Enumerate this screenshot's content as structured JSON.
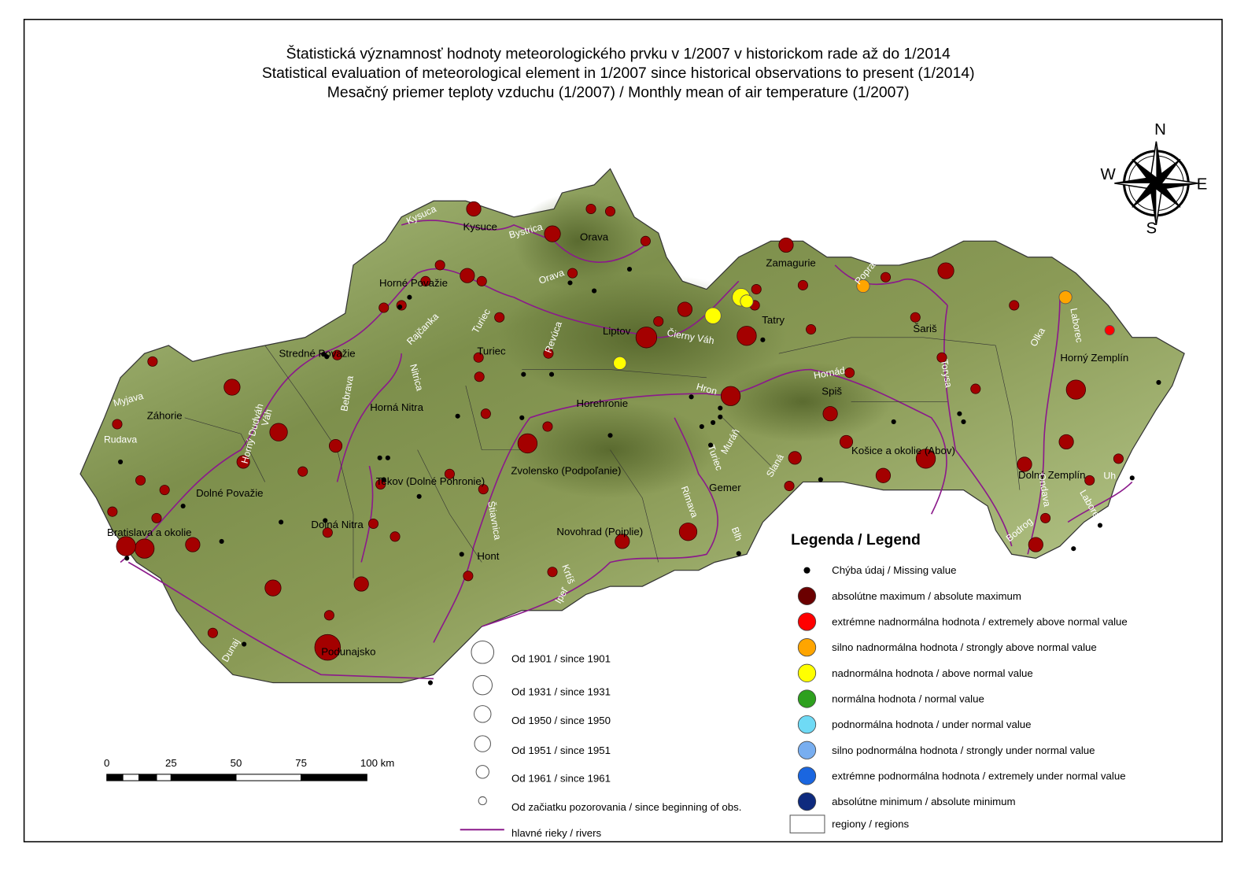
{
  "title": [
    "Štatistická významnosť hodnoty meteorologického prvku v 1/2007 v historickom rade až do 1/2014",
    "Statistical evaluation of meteorological element in 1/2007 since historical observations to present (1/2014)",
    "Mesačný priemer teploty vzduchu (1/2007) / Monthly mean of air temperature (1/2007)"
  ],
  "compass": {
    "north": "N",
    "south": "S",
    "east": "E",
    "west": "W"
  },
  "scale_bar": [
    "0",
    "25",
    "50",
    "75",
    "100 km"
  ],
  "regions": [
    "Kysuce",
    "Orava",
    "Horné Považie",
    "Stredné Považie",
    "Turiec",
    "Liptov",
    "Zamagurie",
    "Tatry",
    "Šariš",
    "Horný Zemplín",
    "Záhorie",
    "Horná Nitra",
    "Horehronie",
    "Spiš",
    "Košice a okolie (Abov)",
    "Dolný Zemplín",
    "Tekov (Dolné Pohronie)",
    "Zvolensko (Podpoľanie)",
    "Gemer",
    "Dolné Považie",
    "Dolná Nitra",
    "Bratislava a okolie",
    "Novohrad (Poiplie)",
    "Hont",
    "Podunajsko"
  ],
  "rivers": [
    "Kysuca",
    "Bystrica",
    "Orava",
    "Rajčanka",
    "Turiec",
    "Revúca",
    "Čierny Váh",
    "Poprad",
    "Hornád",
    "Torysa",
    "Olka",
    "Laborec",
    "Hron",
    "Nitrica",
    "Bebrava",
    "Myjava",
    "Rudava",
    "Horný Dudváh",
    "Váh",
    "Muráň",
    "Turiec",
    "Slaná",
    "Rimava",
    "Blh",
    "Štiavnica",
    "Krtíš",
    "Ipeľ",
    "Dunaj",
    "Ondava",
    "Laborec",
    "Uh",
    "Bodrog"
  ],
  "legend": {
    "title": "Legenda / Legend",
    "items": [
      {
        "label": "Chýba údaj / Missing value",
        "color": "#000000"
      },
      {
        "label": "absolútne maximum / absolute maximum",
        "color": "#6b0000"
      },
      {
        "label": "extrémne nadnormálna hodnota / extremely above normal value",
        "color": "#ff0000"
      },
      {
        "label": "silno nadnormálna hodnota / strongly above normal value",
        "color": "#ffa500"
      },
      {
        "label": "nadnormálna hodnota / above normal value",
        "color": "#ffff00"
      },
      {
        "label": "normálna hodnota / normal value",
        "color": "#2ea01e"
      },
      {
        "label": "podnormálna hodnota / under normal value",
        "color": "#6fdaf5"
      },
      {
        "label": "silno podnormálna hodnota  / strongly under normal value",
        "color": "#78aef0"
      },
      {
        "label": "extrémne podnormálna hodnota / extremely under normal value",
        "color": "#1a66e0"
      },
      {
        "label": "absolútne minimum / absolute minimum",
        "color": "#0e2a7e"
      }
    ],
    "regions_label": "regiony / regions"
  },
  "size_legend": [
    "Od 1901 / since 1901",
    "Od 1931 / since 1931",
    "Od 1950 / since 1950",
    "Od 1951 / since 1951",
    "Od 1961 / since 1961",
    "Od začiatku pozorovania / since beginning of obs."
  ],
  "rivers_label": "hlavné rieky / rivers"
}
